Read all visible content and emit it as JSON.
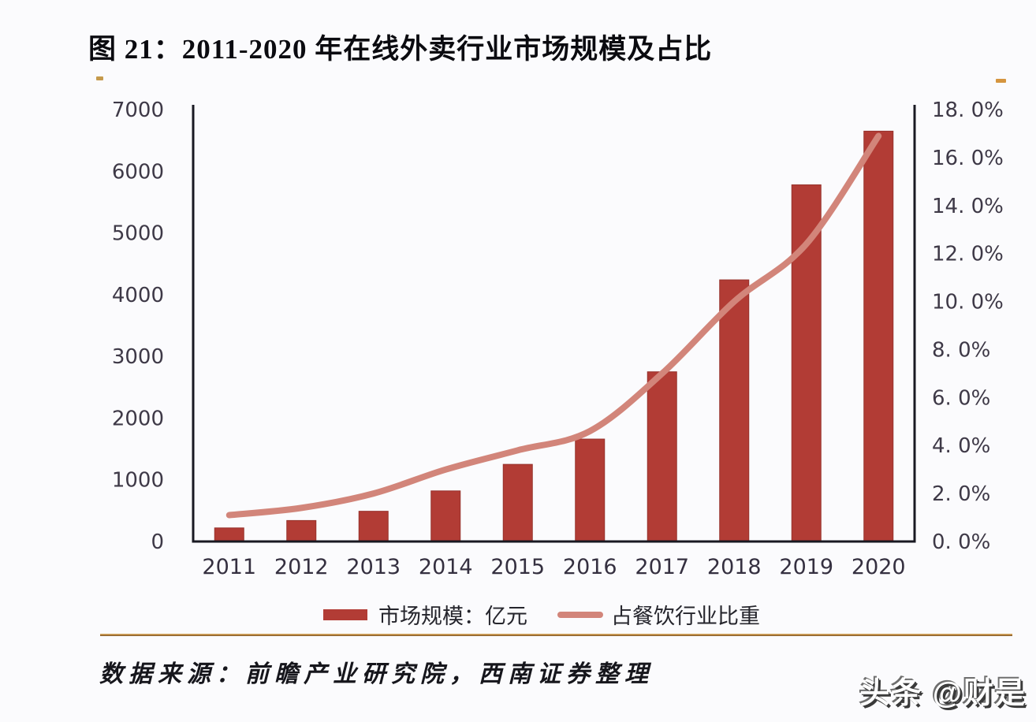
{
  "title": "图 21：2011-2020 年在线外卖行业市场规模及占比",
  "legend": {
    "bar_label": "市场规模：亿元",
    "line_label": "占餐饮行业比重"
  },
  "source": "数据来源：前瞻产业研究院，西南证券整理",
  "watermark": "头条 @财是",
  "colors": {
    "bar": "#b23c35",
    "bar_edge": "#96322c",
    "line": "#d2857a",
    "axis": "#191922",
    "tick_text": "#3e3947",
    "gold_left": "#c59a4c",
    "gold_right": "#d5953f",
    "background": "#fbfbfd"
  },
  "chart_data": {
    "type": "bar",
    "title": "图 21：2011-2020 年在线外卖行业市场规模及占比",
    "categories": [
      "2011",
      "2012",
      "2013",
      "2014",
      "2015",
      "2016",
      "2017",
      "2018",
      "2019",
      "2020"
    ],
    "series": [
      {
        "name": "市场规模：亿元",
        "type": "bar",
        "axis": "left",
        "values": [
          220,
          340,
          490,
          820,
          1250,
          1660,
          2750,
          4240,
          5780,
          6650
        ]
      },
      {
        "name": "占餐饮行业比重",
        "type": "line",
        "axis": "right",
        "values": [
          1.1,
          1.4,
          2.0,
          3.0,
          3.8,
          4.6,
          7.0,
          10.0,
          12.4,
          16.9
        ]
      }
    ],
    "left_axis": {
      "label": "",
      "min": 0,
      "max": 7000,
      "step": 1000,
      "tick_labels": [
        "0",
        "1000",
        "2000",
        "3000",
        "4000",
        "5000",
        "6000",
        "7000"
      ]
    },
    "right_axis": {
      "label": "",
      "min": 0,
      "max": 18,
      "step": 2,
      "tick_labels": [
        "0. 0%",
        "2. 0%",
        "4. 0%",
        "6. 0%",
        "8. 0%",
        "10. 0%",
        "12. 0%",
        "14. 0%",
        "16. 0%",
        "18. 0%"
      ]
    },
    "grid": false,
    "legend_position": "bottom"
  }
}
